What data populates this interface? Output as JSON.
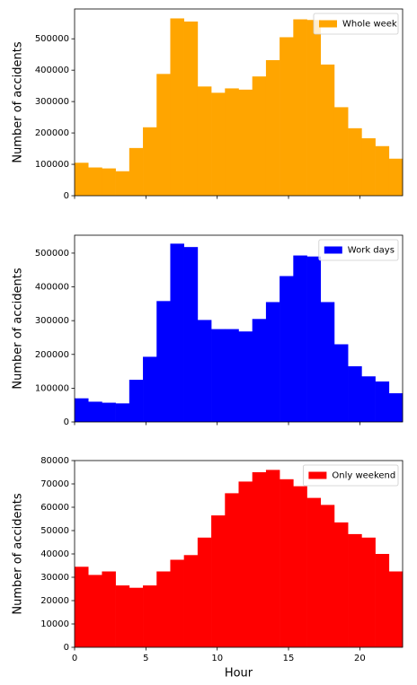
{
  "chart_data": [
    {
      "type": "histogram",
      "ylabel": "Number of accidents",
      "legend": "upper right",
      "bins": [
        0,
        0.9583,
        1.9167,
        2.875,
        3.8333,
        4.7917,
        5.75,
        6.7083,
        7.6667,
        8.625,
        9.5833,
        10.5417,
        11.5,
        12.4583,
        13.4167,
        14.375,
        15.3333,
        16.2917,
        17.25,
        18.2083,
        19.1667,
        20.125,
        21.0833,
        22.0417,
        23
      ],
      "series": [
        {
          "name": "Whole week",
          "color": "#ffa500",
          "values": [
            105000,
            90000,
            87000,
            78000,
            152000,
            218000,
            388000,
            565000,
            555000,
            348000,
            328000,
            342000,
            338000,
            380000,
            432000,
            505000,
            562000,
            560000,
            418000,
            282000,
            215000,
            183000,
            158000,
            118000
          ]
        }
      ],
      "xlim": [
        0,
        23
      ],
      "xticks": [
        0,
        5,
        10,
        15,
        20
      ],
      "ylim": [
        0,
        595000
      ],
      "yticks": [
        0,
        100000,
        200000,
        300000,
        400000,
        500000
      ]
    },
    {
      "type": "histogram",
      "ylabel": "Number of accidents",
      "legend": "upper right",
      "bins": [
        0,
        0.9583,
        1.9167,
        2.875,
        3.8333,
        4.7917,
        5.75,
        6.7083,
        7.6667,
        8.625,
        9.5833,
        10.5417,
        11.5,
        12.4583,
        13.4167,
        14.375,
        15.3333,
        16.2917,
        17.25,
        18.2083,
        19.1667,
        20.125,
        21.0833,
        22.0417,
        23
      ],
      "series": [
        {
          "name": "Work days",
          "color": "#0000ff",
          "values": [
            70000,
            60000,
            57000,
            55000,
            125000,
            193000,
            358000,
            528000,
            518000,
            302000,
            275000,
            275000,
            268000,
            305000,
            355000,
            432000,
            493000,
            490000,
            355000,
            230000,
            165000,
            135000,
            120000,
            85000
          ]
        }
      ],
      "xlim": [
        0,
        23
      ],
      "xticks": [
        0,
        5,
        10,
        15,
        20
      ],
      "ylim": [
        0,
        553000
      ],
      "yticks": [
        0,
        100000,
        200000,
        300000,
        400000,
        500000
      ]
    },
    {
      "type": "histogram",
      "ylabel": "Number of accidents",
      "xlabel": "Hour",
      "legend": "upper right",
      "bins": [
        0,
        0.9583,
        1.9167,
        2.875,
        3.8333,
        4.7917,
        5.75,
        6.7083,
        7.6667,
        8.625,
        9.5833,
        10.5417,
        11.5,
        12.4583,
        13.4167,
        14.375,
        15.3333,
        16.2917,
        17.25,
        18.2083,
        19.1667,
        20.125,
        21.0833,
        22.0417,
        23
      ],
      "series": [
        {
          "name": "Only weekend",
          "color": "#ff0000",
          "values": [
            34500,
            31000,
            32500,
            26500,
            25500,
            26500,
            32500,
            37500,
            39500,
            47000,
            56500,
            66000,
            71000,
            75000,
            76000,
            72000,
            69000,
            64000,
            61000,
            53500,
            48500,
            47000,
            40000,
            32500
          ]
        }
      ],
      "xlim": [
        0,
        23
      ],
      "xticks": [
        0,
        5,
        10,
        15,
        20
      ],
      "ylim": [
        0,
        80000
      ],
      "yticks": [
        0,
        10000,
        20000,
        30000,
        40000,
        50000,
        60000,
        70000,
        80000
      ]
    }
  ]
}
